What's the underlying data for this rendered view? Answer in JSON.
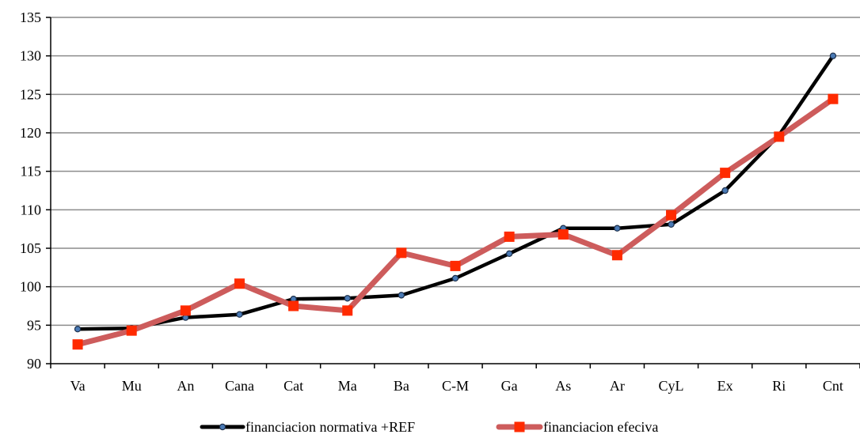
{
  "chart_data": {
    "type": "line",
    "categories": [
      "Va",
      "Mu",
      "An",
      "Cana",
      "Cat",
      "Ma",
      "Ba",
      "C-M",
      "Ga",
      "As",
      "Ar",
      "CyL",
      "Ex",
      "Ri",
      "Cnt"
    ],
    "ylim": [
      90,
      135
    ],
    "yticks": [
      90,
      95,
      100,
      105,
      110,
      115,
      120,
      125,
      130,
      135
    ],
    "grid": true,
    "legend_position": "bottom",
    "series": [
      {
        "name": "financiacion normativa +REF",
        "color": "#000000",
        "marker_color": "#4a7ab5",
        "marker": "circle",
        "values": [
          94.5,
          94.6,
          96.0,
          96.4,
          98.4,
          98.5,
          98.9,
          101.1,
          104.3,
          107.6,
          107.6,
          108.1,
          112.5,
          119.7,
          130.0
        ]
      },
      {
        "name": "financiacion efeciva",
        "color": "#cd5c5c",
        "marker_color": "#ff2a00",
        "marker": "square",
        "values": [
          92.5,
          94.3,
          96.9,
          100.4,
          97.5,
          96.9,
          104.4,
          102.7,
          106.5,
          106.8,
          104.1,
          109.3,
          114.8,
          119.5,
          124.4
        ]
      }
    ]
  }
}
